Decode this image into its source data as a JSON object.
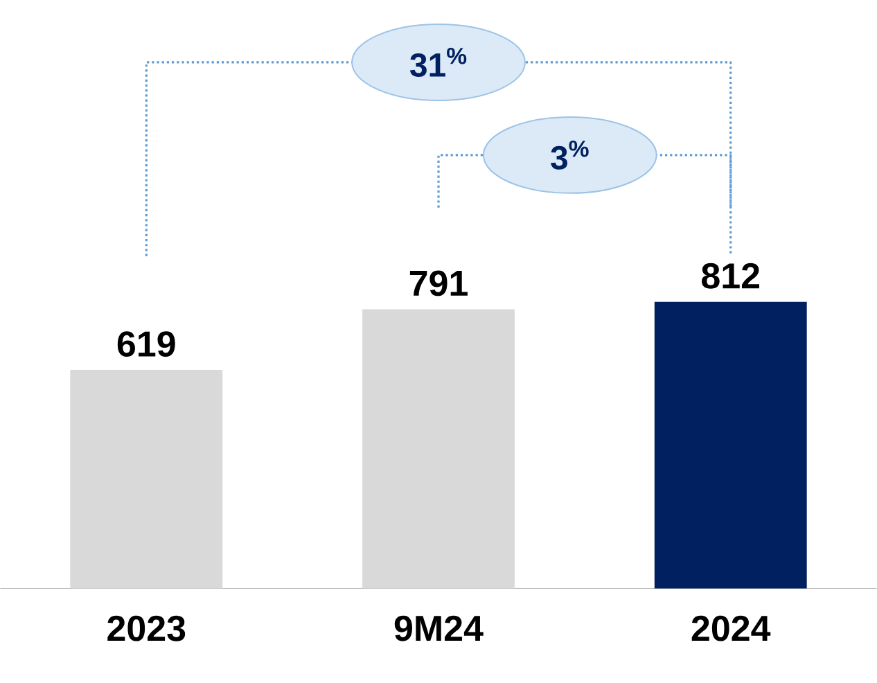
{
  "chart_data": {
    "type": "bar",
    "categories": [
      "2023",
      "9M24",
      "2024"
    ],
    "values": [
      619,
      791,
      812
    ],
    "colors": [
      "#d9d9d9",
      "#d9d9d9",
      "#002060"
    ],
    "data_labels": true,
    "annotations": [
      "31$^{%}$",
      "3$^{%}$"
    ]
  }
}
